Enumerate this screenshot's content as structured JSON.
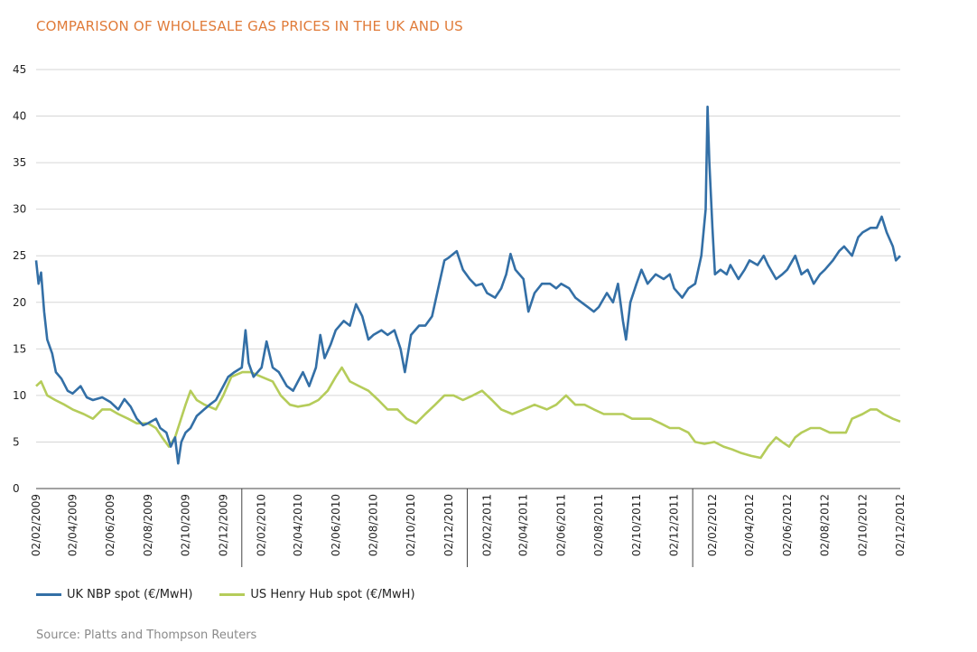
{
  "chart_data": {
    "type": "line",
    "title": "COMPARISON OF WHOLESALE GAS PRICES IN THE UK AND US",
    "xlabel": "",
    "ylabel": "",
    "ylim": [
      0,
      45
    ],
    "yticks": [
      0,
      5,
      10,
      15,
      20,
      25,
      30,
      35,
      40,
      45
    ],
    "xlim": [
      "2009-02-02",
      "2012-12-02"
    ],
    "xtick_labels": [
      "02/02/2009",
      "02/04/2009",
      "02/06/2009",
      "02/08/2009",
      "02/10/2009",
      "02/12/2009",
      "02/02/2010",
      "02/04/2010",
      "02/06/2010",
      "02/08/2010",
      "02/10/2010",
      "02/12/2010",
      "02/02/2011",
      "02/04/2011",
      "02/06/2011",
      "02/08/2011",
      "02/10/2011",
      "02/12/2011",
      "02/02/2012",
      "02/04/2012",
      "02/06/2012",
      "02/08/2012",
      "02/10/2012",
      "02/12/2012"
    ],
    "grid": "horizontal",
    "legend_position": "bottom-left",
    "source": "Source: Platts and Thompson Reuters",
    "series": [
      {
        "name": "UK NBP spot (€/MwH)",
        "color": "#336fa6",
        "points": [
          [
            "2009-02-02",
            24.5
          ],
          [
            "2009-02-06",
            22.0
          ],
          [
            "2009-02-10",
            23.2
          ],
          [
            "2009-02-15",
            19.0
          ],
          [
            "2009-02-20",
            16.0
          ],
          [
            "2009-02-28",
            14.5
          ],
          [
            "2009-03-06",
            12.5
          ],
          [
            "2009-03-15",
            11.8
          ],
          [
            "2009-03-25",
            10.5
          ],
          [
            "2009-04-02",
            10.2
          ],
          [
            "2009-04-15",
            11.0
          ],
          [
            "2009-04-25",
            9.8
          ],
          [
            "2009-05-05",
            9.5
          ],
          [
            "2009-05-20",
            9.8
          ],
          [
            "2009-06-02",
            9.3
          ],
          [
            "2009-06-15",
            8.5
          ],
          [
            "2009-06-25",
            9.6
          ],
          [
            "2009-07-05",
            8.8
          ],
          [
            "2009-07-15",
            7.5
          ],
          [
            "2009-07-25",
            6.8
          ],
          [
            "2009-08-02",
            7.0
          ],
          [
            "2009-08-15",
            7.5
          ],
          [
            "2009-08-22",
            6.5
          ],
          [
            "2009-09-01",
            6.0
          ],
          [
            "2009-09-08",
            4.5
          ],
          [
            "2009-09-15",
            5.5
          ],
          [
            "2009-09-20",
            2.7
          ],
          [
            "2009-09-25",
            5.0
          ],
          [
            "2009-10-02",
            6.0
          ],
          [
            "2009-10-10",
            6.5
          ],
          [
            "2009-10-20",
            7.8
          ],
          [
            "2009-11-01",
            8.5
          ],
          [
            "2009-11-10",
            9.0
          ],
          [
            "2009-11-20",
            9.5
          ],
          [
            "2009-12-02",
            11.0
          ],
          [
            "2009-12-10",
            12.0
          ],
          [
            "2009-12-20",
            12.5
          ],
          [
            "2010-01-01",
            13.0
          ],
          [
            "2010-01-07",
            17.0
          ],
          [
            "2010-01-12",
            13.5
          ],
          [
            "2010-01-20",
            12.0
          ],
          [
            "2010-02-02",
            13.0
          ],
          [
            "2010-02-10",
            15.8
          ],
          [
            "2010-02-20",
            13.0
          ],
          [
            "2010-03-02",
            12.5
          ],
          [
            "2010-03-15",
            11.0
          ],
          [
            "2010-03-25",
            10.5
          ],
          [
            "2010-04-02",
            11.5
          ],
          [
            "2010-04-10",
            12.5
          ],
          [
            "2010-04-20",
            11.0
          ],
          [
            "2010-05-01",
            13.0
          ],
          [
            "2010-05-08",
            16.5
          ],
          [
            "2010-05-15",
            14.0
          ],
          [
            "2010-05-25",
            15.5
          ],
          [
            "2010-06-02",
            17.0
          ],
          [
            "2010-06-15",
            18.0
          ],
          [
            "2010-06-25",
            17.5
          ],
          [
            "2010-07-05",
            19.8
          ],
          [
            "2010-07-15",
            18.5
          ],
          [
            "2010-07-25",
            16.0
          ],
          [
            "2010-08-02",
            16.5
          ],
          [
            "2010-08-15",
            17.0
          ],
          [
            "2010-08-25",
            16.5
          ],
          [
            "2010-09-05",
            17.0
          ],
          [
            "2010-09-15",
            15.0
          ],
          [
            "2010-09-22",
            12.5
          ],
          [
            "2010-10-02",
            16.5
          ],
          [
            "2010-10-15",
            17.5
          ],
          [
            "2010-10-25",
            17.5
          ],
          [
            "2010-11-05",
            18.5
          ],
          [
            "2010-11-15",
            21.5
          ],
          [
            "2010-11-25",
            24.5
          ],
          [
            "2010-12-02",
            24.8
          ],
          [
            "2010-12-15",
            25.5
          ],
          [
            "2010-12-25",
            23.5
          ],
          [
            "2011-01-05",
            22.5
          ],
          [
            "2011-01-15",
            21.8
          ],
          [
            "2011-01-25",
            22.0
          ],
          [
            "2011-02-02",
            21.0
          ],
          [
            "2011-02-15",
            20.5
          ],
          [
            "2011-02-25",
            21.5
          ],
          [
            "2011-03-05",
            23.0
          ],
          [
            "2011-03-12",
            25.2
          ],
          [
            "2011-03-20",
            23.5
          ],
          [
            "2011-04-02",
            22.5
          ],
          [
            "2011-04-10",
            19.0
          ],
          [
            "2011-04-20",
            21.0
          ],
          [
            "2011-05-02",
            22.0
          ],
          [
            "2011-05-15",
            22.0
          ],
          [
            "2011-05-25",
            21.5
          ],
          [
            "2011-06-02",
            22.0
          ],
          [
            "2011-06-15",
            21.5
          ],
          [
            "2011-06-25",
            20.5
          ],
          [
            "2011-07-05",
            20.0
          ],
          [
            "2011-07-15",
            19.5
          ],
          [
            "2011-07-25",
            19.0
          ],
          [
            "2011-08-02",
            19.5
          ],
          [
            "2011-08-15",
            21.0
          ],
          [
            "2011-08-25",
            20.0
          ],
          [
            "2011-09-02",
            22.0
          ],
          [
            "2011-09-10",
            18.0
          ],
          [
            "2011-09-15",
            16.0
          ],
          [
            "2011-09-22",
            20.0
          ],
          [
            "2011-10-02",
            22.0
          ],
          [
            "2011-10-10",
            23.5
          ],
          [
            "2011-10-20",
            22.0
          ],
          [
            "2011-11-02",
            23.0
          ],
          [
            "2011-11-15",
            22.5
          ],
          [
            "2011-11-25",
            23.0
          ],
          [
            "2011-12-02",
            21.5
          ],
          [
            "2011-12-15",
            20.5
          ],
          [
            "2011-12-25",
            21.5
          ],
          [
            "2012-01-05",
            22.0
          ],
          [
            "2012-01-15",
            25.0
          ],
          [
            "2012-01-22",
            30.0
          ],
          [
            "2012-01-25",
            41.0
          ],
          [
            "2012-01-28",
            35.0
          ],
          [
            "2012-02-02",
            28.0
          ],
          [
            "2012-02-06",
            23.0
          ],
          [
            "2012-02-15",
            23.5
          ],
          [
            "2012-02-25",
            23.0
          ],
          [
            "2012-03-02",
            24.0
          ],
          [
            "2012-03-15",
            22.5
          ],
          [
            "2012-03-25",
            23.5
          ],
          [
            "2012-04-02",
            24.5
          ],
          [
            "2012-04-15",
            24.0
          ],
          [
            "2012-04-25",
            25.0
          ],
          [
            "2012-05-02",
            24.0
          ],
          [
            "2012-05-15",
            22.5
          ],
          [
            "2012-05-25",
            23.0
          ],
          [
            "2012-06-02",
            23.5
          ],
          [
            "2012-06-15",
            25.0
          ],
          [
            "2012-06-25",
            23.0
          ],
          [
            "2012-07-05",
            23.5
          ],
          [
            "2012-07-15",
            22.0
          ],
          [
            "2012-07-25",
            23.0
          ],
          [
            "2012-08-02",
            23.5
          ],
          [
            "2012-08-15",
            24.5
          ],
          [
            "2012-08-25",
            25.5
          ],
          [
            "2012-09-02",
            26.0
          ],
          [
            "2012-09-15",
            25.0
          ],
          [
            "2012-09-25",
            27.0
          ],
          [
            "2012-10-02",
            27.5
          ],
          [
            "2012-10-15",
            28.0
          ],
          [
            "2012-10-25",
            28.0
          ],
          [
            "2012-11-02",
            29.2
          ],
          [
            "2012-11-10",
            27.5
          ],
          [
            "2012-11-20",
            26.0
          ],
          [
            "2012-11-25",
            24.5
          ],
          [
            "2012-12-02",
            25.0
          ]
        ]
      },
      {
        "name": "US Henry Hub spot  (€/MwH)",
        "color": "#b5cc5a",
        "points": [
          [
            "2009-02-02",
            11.0
          ],
          [
            "2009-02-10",
            11.5
          ],
          [
            "2009-02-20",
            10.0
          ],
          [
            "2009-03-05",
            9.5
          ],
          [
            "2009-03-20",
            9.0
          ],
          [
            "2009-04-02",
            8.5
          ],
          [
            "2009-04-20",
            8.0
          ],
          [
            "2009-05-05",
            7.5
          ],
          [
            "2009-05-20",
            8.5
          ],
          [
            "2009-06-02",
            8.5
          ],
          [
            "2009-06-15",
            8.0
          ],
          [
            "2009-07-01",
            7.5
          ],
          [
            "2009-07-15",
            7.0
          ],
          [
            "2009-08-02",
            7.0
          ],
          [
            "2009-08-15",
            6.5
          ],
          [
            "2009-08-25",
            5.5
          ],
          [
            "2009-09-05",
            4.5
          ],
          [
            "2009-09-15",
            5.5
          ],
          [
            "2009-10-02",
            9.0
          ],
          [
            "2009-10-10",
            10.5
          ],
          [
            "2009-10-20",
            9.5
          ],
          [
            "2009-11-02",
            9.0
          ],
          [
            "2009-11-20",
            8.5
          ],
          [
            "2009-12-02",
            10.0
          ],
          [
            "2009-12-15",
            12.0
          ],
          [
            "2010-01-02",
            12.5
          ],
          [
            "2010-01-15",
            12.5
          ],
          [
            "2010-02-02",
            12.0
          ],
          [
            "2010-02-20",
            11.5
          ],
          [
            "2010-03-05",
            10.0
          ],
          [
            "2010-03-20",
            9.0
          ],
          [
            "2010-04-02",
            8.8
          ],
          [
            "2010-04-20",
            9.0
          ],
          [
            "2010-05-05",
            9.5
          ],
          [
            "2010-05-20",
            10.5
          ],
          [
            "2010-06-02",
            12.0
          ],
          [
            "2010-06-12",
            13.0
          ],
          [
            "2010-06-25",
            11.5
          ],
          [
            "2010-07-10",
            11.0
          ],
          [
            "2010-07-25",
            10.5
          ],
          [
            "2010-08-10",
            9.5
          ],
          [
            "2010-08-25",
            8.5
          ],
          [
            "2010-09-10",
            8.5
          ],
          [
            "2010-09-25",
            7.5
          ],
          [
            "2010-10-10",
            7.0
          ],
          [
            "2010-10-25",
            8.0
          ],
          [
            "2010-11-10",
            9.0
          ],
          [
            "2010-11-25",
            10.0
          ],
          [
            "2010-12-10",
            10.0
          ],
          [
            "2010-12-25",
            9.5
          ],
          [
            "2011-01-10",
            10.0
          ],
          [
            "2011-01-25",
            10.5
          ],
          [
            "2011-02-10",
            9.5
          ],
          [
            "2011-02-25",
            8.5
          ],
          [
            "2011-03-15",
            8.0
          ],
          [
            "2011-04-02",
            8.5
          ],
          [
            "2011-04-20",
            9.0
          ],
          [
            "2011-05-10",
            8.5
          ],
          [
            "2011-05-25",
            9.0
          ],
          [
            "2011-06-10",
            10.0
          ],
          [
            "2011-06-25",
            9.0
          ],
          [
            "2011-07-10",
            9.0
          ],
          [
            "2011-07-25",
            8.5
          ],
          [
            "2011-08-10",
            8.0
          ],
          [
            "2011-08-25",
            8.0
          ],
          [
            "2011-09-10",
            8.0
          ],
          [
            "2011-09-25",
            7.5
          ],
          [
            "2011-10-10",
            7.5
          ],
          [
            "2011-10-25",
            7.5
          ],
          [
            "2011-11-10",
            7.0
          ],
          [
            "2011-11-25",
            6.5
          ],
          [
            "2011-12-10",
            6.5
          ],
          [
            "2011-12-25",
            6.0
          ],
          [
            "2012-01-05",
            5.0
          ],
          [
            "2012-01-20",
            4.8
          ],
          [
            "2012-02-05",
            5.0
          ],
          [
            "2012-02-20",
            4.5
          ],
          [
            "2012-03-05",
            4.2
          ],
          [
            "2012-03-20",
            3.8
          ],
          [
            "2012-04-05",
            3.5
          ],
          [
            "2012-04-20",
            3.3
          ],
          [
            "2012-05-02",
            4.5
          ],
          [
            "2012-05-15",
            5.5
          ],
          [
            "2012-05-25",
            5.0
          ],
          [
            "2012-06-05",
            4.5
          ],
          [
            "2012-06-15",
            5.5
          ],
          [
            "2012-06-25",
            6.0
          ],
          [
            "2012-07-10",
            6.5
          ],
          [
            "2012-07-25",
            6.5
          ],
          [
            "2012-08-10",
            6.0
          ],
          [
            "2012-08-25",
            6.0
          ],
          [
            "2012-09-05",
            6.0
          ],
          [
            "2012-09-15",
            7.5
          ],
          [
            "2012-10-02",
            8.0
          ],
          [
            "2012-10-15",
            8.5
          ],
          [
            "2012-10-25",
            8.5
          ],
          [
            "2012-11-05",
            8.0
          ],
          [
            "2012-11-20",
            7.5
          ],
          [
            "2012-12-02",
            7.2
          ]
        ]
      }
    ]
  }
}
